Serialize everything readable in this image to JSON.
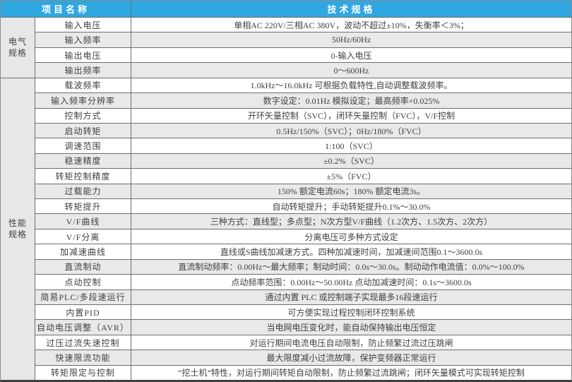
{
  "colors": {
    "header_bg": "#2fa7e0",
    "header_text": "#ffffff",
    "stripe": "#e9e9e9",
    "group_bg": "#e7e7e7",
    "border": "#6e6e6e",
    "outer_border": "#8a8a8a",
    "bottom_border": "#3f3f3f",
    "text": "#404040"
  },
  "table": {
    "header": {
      "item_col": "项目名称",
      "spec_col": "技术规格"
    },
    "groups": [
      {
        "label_lines": [
          "电气",
          "规格"
        ],
        "rows": [
          {
            "item": "输入电压",
            "spec": "单相AC 220V/三相AC 380V，波动不超过±10%，失衡率＜3%；",
            "shaded": false
          },
          {
            "item": "输入频率",
            "spec": "50Hz/60Hz",
            "shaded": true
          },
          {
            "item": "输出电压",
            "spec": "0-输入电压",
            "shaded": false
          },
          {
            "item": "输出频率",
            "spec": "0～600Hz",
            "shaded": true
          }
        ]
      },
      {
        "label_lines": [
          "性能",
          "规格"
        ],
        "rows": [
          {
            "item": "载波频率",
            "spec": "1.0kHz～16.0kHz 可根据负载特性,自动调整载波频率。",
            "shaded": false
          },
          {
            "item": "输入频率分辨率",
            "spec": "数字设定：0.01Hz 模拟设定；最高频率×0.025%",
            "shaded": true
          },
          {
            "item": "控制方式",
            "spec": "开环矢量控制（SVC），闭环矢量控制（FVC），V/F控制",
            "shaded": false
          },
          {
            "item": "启动转矩",
            "spec": "0.5Hz/150%（SVC）；0Hz/180%（FVC）",
            "shaded": true
          },
          {
            "item": "调速范围",
            "spec": "1:100（SVC）",
            "shaded": false
          },
          {
            "item": "稳速精度",
            "spec": "±0.2%（SVC）",
            "shaded": true
          },
          {
            "item": "转矩控制精度",
            "spec": "±5%（FVC）",
            "shaded": false
          },
          {
            "item": "过载能力",
            "spec": "150% 额定电流60s；180% 额定电流3s。",
            "shaded": true
          },
          {
            "item": "转矩提升",
            "spec": "自动转矩提升；手动转矩提升0.1%～30.0%",
            "shaded": false
          },
          {
            "item": "V/F曲线",
            "spec": "三种方式：直线型；多点型；N次方型V/F曲线（1.2次方、1.5次方、2次方）",
            "shaded": true
          },
          {
            "item": "V/F分离",
            "spec": "分离电压可多种方式设定",
            "shaded": false
          },
          {
            "item": "加减速曲线",
            "spec": "直线或S曲线加减速方式。四种加减速时间，加减速间范围0.1～3600.0s",
            "shaded": false
          },
          {
            "item": "直流制动",
            "spec": "直流制动频率：0.00Hz～最大频率；制动时间：0.0s～30.0s。制动动作电流值：0.0%～100.0%",
            "shaded": true
          },
          {
            "item": "点动控制",
            "spec": "点动频率范围：0.00Hz～50.00Hz 点动加减速时间：0.1s～3600.0s",
            "shaded": false
          },
          {
            "item": "简易PLC/多段速运行",
            "spec": "通过内置 PLC 或控制端子实现最多16段速运行",
            "shaded": true
          },
          {
            "item": "内置PID",
            "spec": "可方便实现过程控制闭环控制系统",
            "shaded": false
          },
          {
            "item": "自动电压调整（AVR）",
            "spec": "当电网电压变化时，能自动保持输出电压恒定",
            "shaded": true
          },
          {
            "item": "过压过流失速控制",
            "spec": "对运行期间电流电压自动限制，防止频繁过流过压跳闸",
            "shaded": false
          },
          {
            "item": "快速限流功能",
            "spec": "最大限度减小过流故障，保护变频器正常运行",
            "shaded": true
          },
          {
            "item": "转矩限定与控制",
            "spec": "“挖土机”特性，对运行期间转矩自动限制，防止频繁过流跳闸；闭环矢量模式可实现转矩控制",
            "shaded": false
          }
        ]
      }
    ]
  }
}
